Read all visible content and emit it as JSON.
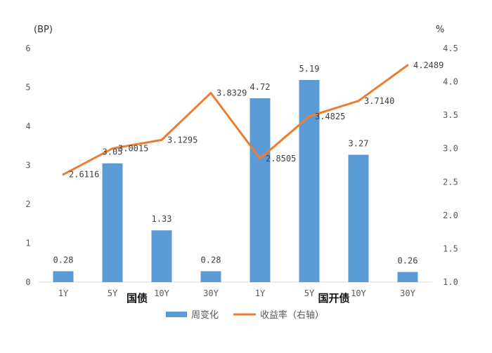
{
  "chart_data": {
    "type": "bar",
    "categories": [
      "1Y",
      "5Y",
      "10Y",
      "30Y",
      "1Y",
      "5Y",
      "10Y",
      "30Y"
    ],
    "groups": [
      {
        "label": "国债",
        "span": [
          0,
          3
        ]
      },
      {
        "label": "国开债",
        "span": [
          4,
          7
        ]
      }
    ],
    "series": [
      {
        "name": "周变化",
        "type": "bar",
        "axis": "left",
        "values": [
          0.28,
          3.05,
          1.33,
          0.28,
          4.72,
          5.19,
          3.27,
          0.26
        ],
        "labels": [
          "0.28",
          "3.05",
          "1.33",
          "0.28",
          "4.72",
          "5.19",
          "3.27",
          "0.26"
        ]
      },
      {
        "name": "收益率（右轴）",
        "type": "line",
        "axis": "right",
        "values": [
          2.6116,
          3.0015,
          3.1295,
          3.8329,
          2.8505,
          3.4825,
          3.714,
          4.2489
        ],
        "labels": [
          "2.6116",
          "3.0015",
          "3.1295",
          "3.8329",
          "2.8505",
          "3.4825",
          "3.7140",
          "4.2489"
        ]
      }
    ],
    "left_axis": {
      "unit": "(BP)",
      "ylim": [
        0,
        6
      ],
      "ticks": [
        "0",
        "1",
        "2",
        "3",
        "4",
        "5",
        "6"
      ]
    },
    "right_axis": {
      "unit": "%",
      "ylim": [
        1.0,
        4.5
      ],
      "ticks": [
        "1.0",
        "1.5",
        "2.0",
        "2.5",
        "3.0",
        "3.5",
        "4.0",
        "4.5"
      ]
    },
    "grid": false,
    "legend_position": "bottom",
    "colors": {
      "bar": "#5b9bd5",
      "line": "#ed7d31",
      "axis": "#d9d9d9"
    }
  }
}
